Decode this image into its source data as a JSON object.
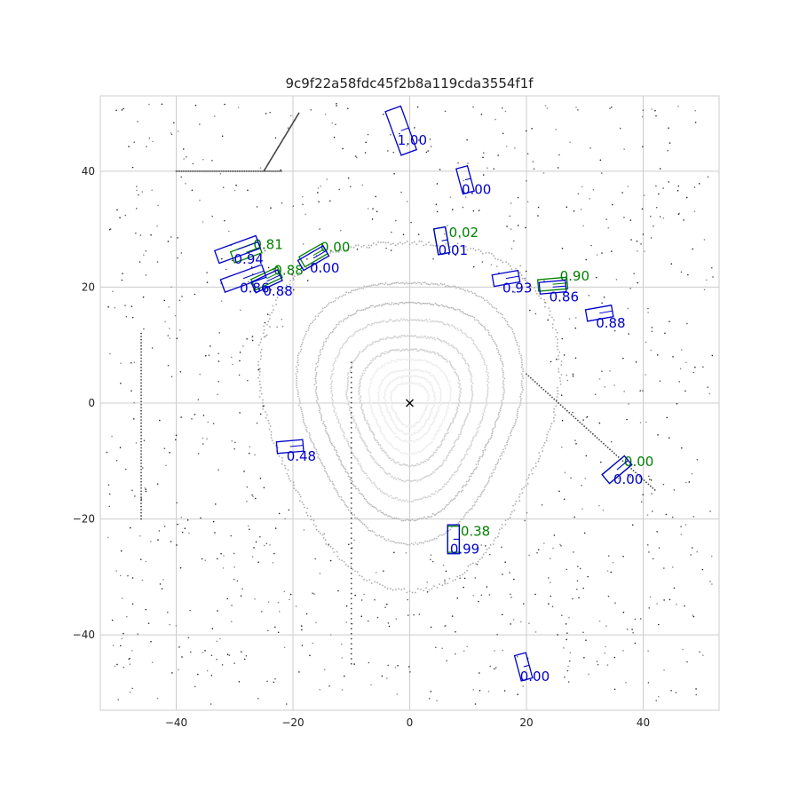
{
  "chart_data": {
    "type": "scatter",
    "title": "9c9f22a58fdc45f2b8a119cda3554f1f",
    "xlabel": "",
    "ylabel": "",
    "xlim": [
      -53,
      53
    ],
    "ylim": [
      -53,
      53
    ],
    "xticks": [
      -40,
      -20,
      0,
      20,
      40
    ],
    "yticks": [
      -40,
      -20,
      0,
      20,
      40
    ],
    "grid": true,
    "ego": {
      "x": 0,
      "y": 0,
      "marker": "x"
    },
    "colors": {
      "gt": "#008000",
      "pred": "#0000cc",
      "points": "#555555",
      "grid": "#cccccc"
    },
    "gt_boxes": [
      {
        "cx": -28.0,
        "cy": 26.0,
        "w": 5.0,
        "l": 2.0,
        "rot": -20,
        "score": "0.81"
      },
      {
        "cx": -24.5,
        "cy": 21.5,
        "w": 5.0,
        "l": 2.0,
        "rot": -25,
        "score": "0.88"
      },
      {
        "cx": -16.5,
        "cy": 25.5,
        "w": 4.5,
        "l": 2.0,
        "rot": -30,
        "score": "0.00"
      },
      {
        "cx": 5.5,
        "cy": 28.0,
        "w": 2.0,
        "l": 4.5,
        "rot": -10,
        "score": "0.02"
      },
      {
        "cx": 24.5,
        "cy": 20.5,
        "w": 5.0,
        "l": 2.0,
        "rot": -5,
        "score": "0.90"
      },
      {
        "cx": 35.5,
        "cy": -11.5,
        "w": 5.0,
        "l": 2.0,
        "rot": -40,
        "score": "0.00"
      },
      {
        "cx": 7.5,
        "cy": -23.5,
        "w": 2.0,
        "l": 4.5,
        "rot": 0,
        "score": "0.38"
      }
    ],
    "pred_boxes": [
      {
        "cx": -1.5,
        "cy": 47.0,
        "w": 2.8,
        "l": 8.0,
        "rot": -20,
        "score": "1.00"
      },
      {
        "cx": 9.5,
        "cy": 38.5,
        "w": 2.0,
        "l": 4.5,
        "rot": -15,
        "score": "0.00"
      },
      {
        "cx": -29.5,
        "cy": 26.5,
        "w": 7.5,
        "l": 2.3,
        "rot": -20,
        "score": "0.94"
      },
      {
        "cx": -28.5,
        "cy": 21.5,
        "w": 7.5,
        "l": 2.3,
        "rot": -20,
        "score": "0.86"
      },
      {
        "cx": -24.5,
        "cy": 21.0,
        "w": 5.0,
        "l": 2.0,
        "rot": -25,
        "score": "0.88"
      },
      {
        "cx": -16.5,
        "cy": 25.0,
        "w": 5.0,
        "l": 2.0,
        "rot": -30,
        "score": "0.00"
      },
      {
        "cx": 5.5,
        "cy": 28.0,
        "w": 2.0,
        "l": 4.5,
        "rot": -10,
        "score": "0.01"
      },
      {
        "cx": 16.5,
        "cy": 21.5,
        "w": 4.5,
        "l": 2.0,
        "rot": -10,
        "score": "0.93"
      },
      {
        "cx": 24.5,
        "cy": 20.0,
        "w": 4.5,
        "l": 2.0,
        "rot": -5,
        "score": "0.86"
      },
      {
        "cx": 32.5,
        "cy": 15.5,
        "w": 4.5,
        "l": 2.0,
        "rot": -10,
        "score": "0.88"
      },
      {
        "cx": -20.5,
        "cy": -7.5,
        "w": 4.5,
        "l": 2.0,
        "rot": -5,
        "score": "0.48"
      },
      {
        "cx": 35.5,
        "cy": -11.5,
        "w": 5.0,
        "l": 2.0,
        "rot": -40,
        "score": "0.00"
      },
      {
        "cx": 7.5,
        "cy": -23.5,
        "w": 2.0,
        "l": 5.0,
        "rot": 0,
        "score": "0.99"
      },
      {
        "cx": 19.5,
        "cy": -45.5,
        "w": 2.0,
        "l": 4.5,
        "rot": -15,
        "score": "0.00"
      }
    ]
  }
}
